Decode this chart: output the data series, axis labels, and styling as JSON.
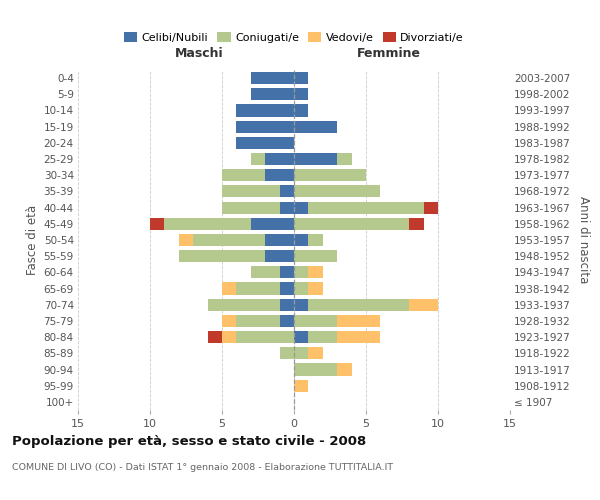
{
  "age_groups": [
    "100+",
    "95-99",
    "90-94",
    "85-89",
    "80-84",
    "75-79",
    "70-74",
    "65-69",
    "60-64",
    "55-59",
    "50-54",
    "45-49",
    "40-44",
    "35-39",
    "30-34",
    "25-29",
    "20-24",
    "15-19",
    "10-14",
    "5-9",
    "0-4"
  ],
  "birth_years": [
    "≤ 1907",
    "1908-1912",
    "1913-1917",
    "1918-1922",
    "1923-1927",
    "1928-1932",
    "1933-1937",
    "1938-1942",
    "1943-1947",
    "1948-1952",
    "1953-1957",
    "1958-1962",
    "1963-1967",
    "1968-1972",
    "1973-1977",
    "1978-1982",
    "1983-1987",
    "1988-1992",
    "1993-1997",
    "1998-2002",
    "2003-2007"
  ],
  "colors": {
    "celibi": "#4472a8",
    "coniugati": "#b5c98e",
    "vedovi": "#ffc06a",
    "divorziati": "#c0392b"
  },
  "maschi": {
    "celibi": [
      0,
      0,
      0,
      0,
      0,
      1,
      1,
      1,
      1,
      2,
      2,
      3,
      1,
      1,
      2,
      2,
      4,
      4,
      4,
      3,
      3
    ],
    "coniugati": [
      0,
      0,
      0,
      1,
      4,
      3,
      5,
      3,
      2,
      6,
      5,
      6,
      4,
      4,
      3,
      1,
      0,
      0,
      0,
      0,
      0
    ],
    "vedovi": [
      0,
      0,
      0,
      0,
      1,
      1,
      0,
      1,
      0,
      0,
      1,
      0,
      0,
      0,
      0,
      0,
      0,
      0,
      0,
      0,
      0
    ],
    "divorziati": [
      0,
      0,
      0,
      0,
      1,
      0,
      0,
      0,
      0,
      0,
      0,
      1,
      0,
      0,
      0,
      0,
      0,
      0,
      0,
      0,
      0
    ]
  },
  "femmine": {
    "celibi": [
      0,
      0,
      0,
      0,
      1,
      0,
      1,
      0,
      0,
      0,
      1,
      0,
      1,
      0,
      0,
      3,
      0,
      3,
      1,
      1,
      1
    ],
    "coniugati": [
      0,
      0,
      3,
      1,
      2,
      3,
      7,
      1,
      1,
      3,
      1,
      8,
      8,
      6,
      5,
      1,
      0,
      0,
      0,
      0,
      0
    ],
    "vedovi": [
      0,
      1,
      1,
      1,
      3,
      3,
      2,
      1,
      1,
      0,
      0,
      0,
      0,
      0,
      0,
      0,
      0,
      0,
      0,
      0,
      0
    ],
    "divorziati": [
      0,
      0,
      0,
      0,
      0,
      0,
      0,
      0,
      0,
      0,
      0,
      1,
      1,
      0,
      0,
      0,
      0,
      0,
      0,
      0,
      0
    ]
  },
  "xlim": 15,
  "title": "Popolazione per età, sesso e stato civile - 2008",
  "subtitle": "COMUNE DI LIVO (CO) - Dati ISTAT 1° gennaio 2008 - Elaborazione TUTTITALIA.IT",
  "ylabel_left": "Fasce di età",
  "ylabel_right": "Anni di nascita",
  "header_maschi": "Maschi",
  "header_femmine": "Femmine",
  "legend_labels": [
    "Celibi/Nubili",
    "Coniugati/e",
    "Vedovi/e",
    "Divorziati/e"
  ],
  "bg_color": "#ffffff",
  "grid_color": "#cccccc"
}
